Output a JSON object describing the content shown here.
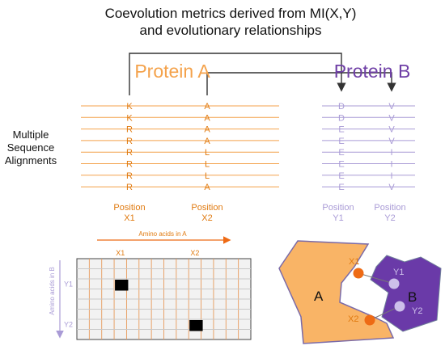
{
  "title": {
    "line1": "Coevolution metrics derived from MI(X,Y)",
    "line2": "and evolutionary relationships"
  },
  "protein_a": {
    "name": "Protein A",
    "color": "#f4a24b",
    "column_x1": [
      "K",
      "K",
      "R",
      "R",
      "R",
      "R",
      "R",
      "R"
    ],
    "column_x2": [
      "A",
      "A",
      "A",
      "A",
      "L",
      "L",
      "L",
      "A"
    ],
    "position_word": "Position",
    "x1": "X1",
    "x2": "X2"
  },
  "protein_b": {
    "name": "Protein B",
    "color": "#6f3fa6",
    "column_y1": [
      "D",
      "D",
      "E",
      "E",
      "E",
      "E",
      "E",
      "E"
    ],
    "column_y2": [
      "V",
      "V",
      "V",
      "V",
      "I",
      "I",
      "I",
      "V"
    ],
    "position_word": "Position",
    "y1": "Y1",
    "y2": "Y2"
  },
  "msa_label": [
    "Multiple",
    "Sequence",
    "Alignments"
  ],
  "matrix": {
    "x_axis_label": "Amino acids in A",
    "y_axis_label": "Amino acids in B",
    "col_labels": [
      "X1",
      "X2"
    ],
    "row_labels": [
      "Y1",
      "Y2"
    ],
    "cols": 14,
    "rows": 8,
    "filled_cells": [
      [
        3,
        2
      ],
      [
        9,
        6
      ]
    ]
  },
  "structure": {
    "label_a": "A",
    "label_b": "B",
    "x1": "X1",
    "x2": "X2",
    "y1": "Y1",
    "y2": "Y2"
  },
  "colors": {
    "orange": "#f4a24b",
    "orange_text": "#e07a10",
    "orange_dot": "#ee6a14",
    "purple": "#6f3fa6",
    "purple_light": "#a99bd6",
    "gray_arrow": "#333333"
  }
}
